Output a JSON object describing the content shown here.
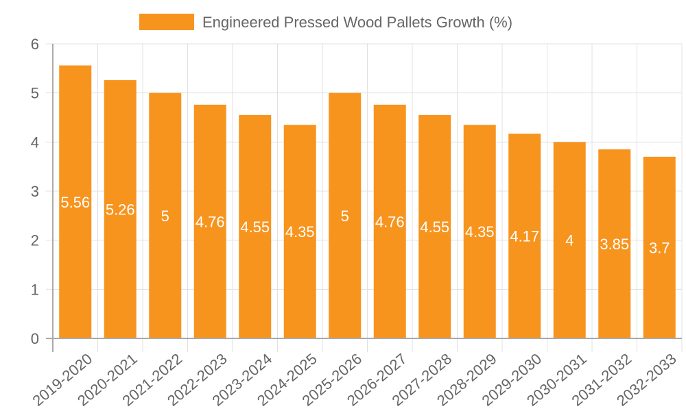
{
  "chart_data": {
    "type": "bar",
    "title": "",
    "legend": {
      "position": "top",
      "entries": [
        "Engineered Pressed Wood Pallets Growth (%)"
      ]
    },
    "categories": [
      "2019-2020",
      "2020-2021",
      "2021-2022",
      "2022-2023",
      "2023-2024",
      "2024-2025",
      "2025-2026",
      "2026-2027",
      "2027-2028",
      "2028-2029",
      "2029-2030",
      "2030-2031",
      "2031-2032",
      "2032-2033"
    ],
    "series": [
      {
        "name": "Engineered Pressed Wood Pallets Growth (%)",
        "color": "#f7941e",
        "values": [
          5.56,
          5.26,
          5,
          4.76,
          4.55,
          4.35,
          5,
          4.76,
          4.55,
          4.35,
          4.17,
          4,
          3.85,
          3.7
        ],
        "labels": [
          "5.56",
          "5.26",
          "5",
          "4.76",
          "4.55",
          "4.35",
          "5",
          "4.76",
          "4.55",
          "4.35",
          "4.17",
          "4",
          "3.85",
          "3.7"
        ]
      }
    ],
    "xlabel": "",
    "ylabel": "",
    "ylim": [
      0,
      6
    ],
    "yticks": [
      "0",
      "1",
      "2",
      "3",
      "4",
      "5",
      "6"
    ],
    "grid": true,
    "data_labels": true
  }
}
